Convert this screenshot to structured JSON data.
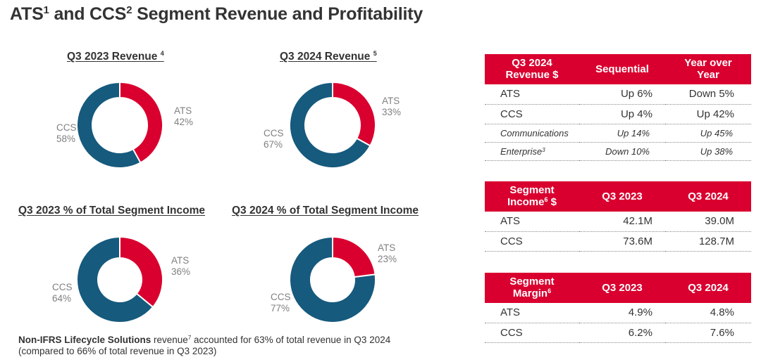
{
  "page": {
    "title": "ATS",
    "title_sup1": "1",
    "title_mid": " and CCS",
    "title_sup2": "2",
    "title_end": " Segment Revenue and Profitability"
  },
  "colors": {
    "ats": "#D9002F",
    "ccs": "#165A7D",
    "header_bg": "#D9002F",
    "label_gray": "#808080"
  },
  "chart_data": [
    {
      "type": "pie",
      "variant": "donut",
      "title": "Q3 2023 Revenue",
      "title_sup": "4",
      "slices": [
        {
          "name": "ATS",
          "value": 42,
          "label": "42%"
        },
        {
          "name": "CCS",
          "value": 58,
          "label": "58%"
        }
      ]
    },
    {
      "type": "pie",
      "variant": "donut",
      "title": "Q3 2024 Revenue",
      "title_sup": "5",
      "slices": [
        {
          "name": "ATS",
          "value": 33,
          "label": "33%"
        },
        {
          "name": "CCS",
          "value": 67,
          "label": "67%"
        }
      ]
    },
    {
      "type": "pie",
      "variant": "donut",
      "title": "Q3 2023 % of Total Segment Income",
      "title_sup": "",
      "slices": [
        {
          "name": "ATS",
          "value": 36,
          "label": "36%"
        },
        {
          "name": "CCS",
          "value": 64,
          "label": "64%"
        }
      ]
    },
    {
      "type": "pie",
      "variant": "donut",
      "title": "Q3 2024 % of Total Segment Income",
      "title_sup": "",
      "slices": [
        {
          "name": "ATS",
          "value": 23,
          "label": "23%"
        },
        {
          "name": "CCS",
          "value": 77,
          "label": "77%"
        }
      ]
    },
    {
      "type": "table",
      "title": "Q3 2024 Revenue $",
      "columns": [
        "Q3 2024 Revenue $",
        "Sequential",
        "Year over Year"
      ],
      "rows": [
        [
          "ATS",
          "Up 6%",
          "Down 5%"
        ],
        [
          "CCS",
          "Up 4%",
          "Up 42%"
        ],
        [
          "Communications",
          "Up 14%",
          "Up 45%"
        ],
        [
          "Enterprise³",
          "Down 10%",
          "Up 38%"
        ]
      ]
    },
    {
      "type": "table",
      "title": "Segment Income⁶ $",
      "columns": [
        "Segment Income⁶ $",
        "Q3 2023",
        "Q3 2024"
      ],
      "rows": [
        [
          "ATS",
          "42.1M",
          "39.0M"
        ],
        [
          "CCS",
          "73.6M",
          "128.7M"
        ]
      ]
    },
    {
      "type": "table",
      "title": "Segment Margin⁶",
      "columns": [
        "Segment Margin⁶",
        "Q3 2023",
        "Q3 2024"
      ],
      "rows": [
        [
          "ATS",
          "4.9%",
          "4.8%"
        ],
        [
          "CCS",
          "6.2%",
          "7.6%"
        ]
      ]
    }
  ],
  "tables": {
    "revenue": {
      "header": {
        "c0_line1": "Q3 2024",
        "c0_line2": "Revenue $",
        "c1": "Sequential",
        "c2_line1": "Year over",
        "c2_line2": "Year"
      },
      "rows": [
        {
          "label": "ATS",
          "sequential": "Up 6%",
          "yoy": "Down 5%"
        },
        {
          "label": "CCS",
          "sequential": "Up 4%",
          "yoy": "Up 42%"
        },
        {
          "label": "Communications",
          "sequential": "Up 14%",
          "yoy": "Up 45%"
        },
        {
          "label": "Enterprise",
          "label_sup": "3",
          "sequential": "Down 10%",
          "yoy": "Up 38%"
        }
      ]
    },
    "income": {
      "header": {
        "c0_line1": "Segment",
        "c0_line2": "Income",
        "c0_sup": "6",
        "c0_suffix": " $",
        "c1": "Q3 2023",
        "c2": "Q3 2024"
      },
      "rows": [
        {
          "label": "ATS",
          "q3_2023": "42.1M",
          "q3_2024": "39.0M"
        },
        {
          "label": "CCS",
          "q3_2023": "73.6M",
          "q3_2024": "128.7M"
        }
      ]
    },
    "margin": {
      "header": {
        "c0_line1": "Segment",
        "c0_line2": "Margin",
        "c0_sup": "6",
        "c1": "Q3 2023",
        "c2": "Q3 2024"
      },
      "rows": [
        {
          "label": "ATS",
          "q3_2023": "4.9%",
          "q3_2024": "4.8%"
        },
        {
          "label": "CCS",
          "q3_2023": "6.2%",
          "q3_2024": "7.6%"
        }
      ]
    }
  },
  "footnote": {
    "bold": "Non-IFRS Lifecycle Solutions",
    "text1": " revenue",
    "sup": "7",
    "text2": " accounted for 63% of total revenue in Q3 2024",
    "line2": "(compared to 66% of total revenue in Q3 2023)"
  }
}
